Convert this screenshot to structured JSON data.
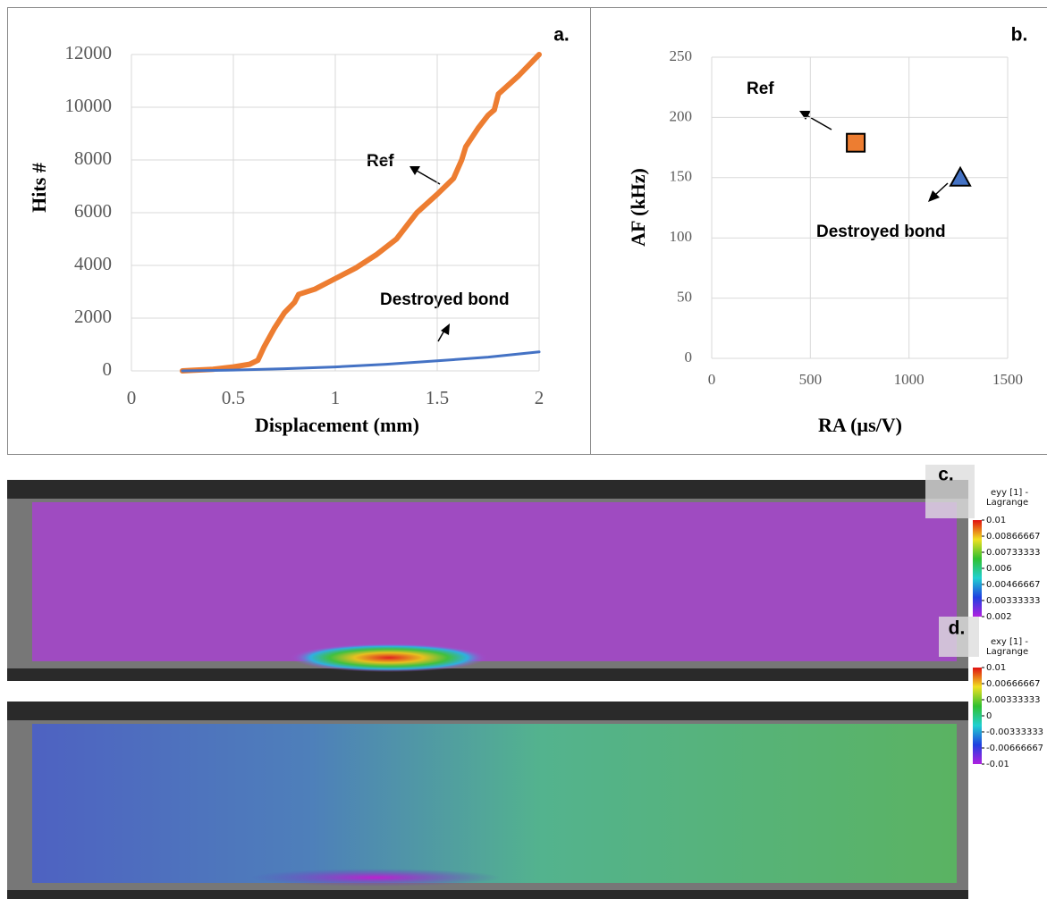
{
  "chart_data": [
    {
      "type": "line",
      "panel_label": "a.",
      "x_label": "Displacement (mm)",
      "y_label": "Hits #",
      "xlim": [
        0,
        2
      ],
      "xticks": [
        0,
        0.5,
        1,
        1.5,
        2
      ],
      "ylim": [
        0,
        12000
      ],
      "yticks": [
        0,
        2000,
        4000,
        6000,
        8000,
        10000,
        12000
      ],
      "grid": true,
      "series": [
        {
          "name": "Ref",
          "color": "#ed7d31",
          "x": [
            0.25,
            0.3,
            0.4,
            0.5,
            0.58,
            0.62,
            0.65,
            0.7,
            0.75,
            0.8,
            0.82,
            0.9,
            1.0,
            1.1,
            1.2,
            1.3,
            1.35,
            1.4,
            1.5,
            1.58,
            1.62,
            1.64,
            1.7,
            1.75,
            1.78,
            1.8,
            1.9,
            2.0
          ],
          "values": [
            0,
            20,
            60,
            150,
            250,
            400,
            900,
            1600,
            2200,
            2600,
            2900,
            3100,
            3500,
            3900,
            4400,
            5000,
            5500,
            6000,
            6700,
            7300,
            8000,
            8500,
            9200,
            9700,
            9900,
            10500,
            11200,
            12000
          ]
        },
        {
          "name": "Destroyed bond",
          "color": "#4472c4",
          "x": [
            0.25,
            0.5,
            0.75,
            1.0,
            1.25,
            1.5,
            1.75,
            2.0
          ],
          "values": [
            0,
            30,
            80,
            150,
            250,
            380,
            520,
            720
          ]
        }
      ]
    },
    {
      "type": "scatter",
      "panel_label": "b.",
      "x_label": "RA (µs/V)",
      "y_label": "AF (kHz)",
      "xlim": [
        0,
        1500
      ],
      "xticks": [
        0,
        500,
        1000,
        1500
      ],
      "ylim": [
        0,
        250
      ],
      "yticks": [
        0,
        50,
        100,
        150,
        200,
        250
      ],
      "grid": true,
      "series": [
        {
          "name": "Ref",
          "color": "#ed7d31",
          "marker": "square",
          "x": [
            730
          ],
          "values": [
            179
          ]
        },
        {
          "name": "Destroyed bond",
          "color": "#4472c4",
          "marker": "triangle",
          "x": [
            1260
          ],
          "values": [
            150
          ]
        }
      ]
    }
  ],
  "images": [
    {
      "panel_label": "c.",
      "colorbar_title": [
        "eyy [1] -",
        "Lagrange"
      ],
      "colorbar_ticks": [
        0.01,
        {
          "value": 0.00866667,
          "label": "0.00866667"
        },
        {
          "value": 0.00733333,
          "label": "0.00733333"
        },
        0.006,
        {
          "value": 0.00466667,
          "label": "0.00466667"
        },
        {
          "value": 0.00333333,
          "label": "0.00333333"
        },
        0.002
      ]
    },
    {
      "panel_label": "d.",
      "colorbar_title": [
        "exy [1] -",
        "Lagrange"
      ],
      "colorbar_ticks": [
        0.01,
        {
          "value": 0.00666667,
          "label": "0.00666667"
        },
        {
          "value": 0.00333333,
          "label": "0.00333333"
        },
        0,
        {
          "value": -0.00333333,
          "label": "-0.00333333"
        },
        {
          "value": -0.00666667,
          "label": "-0.00666667"
        },
        -0.01
      ]
    }
  ]
}
